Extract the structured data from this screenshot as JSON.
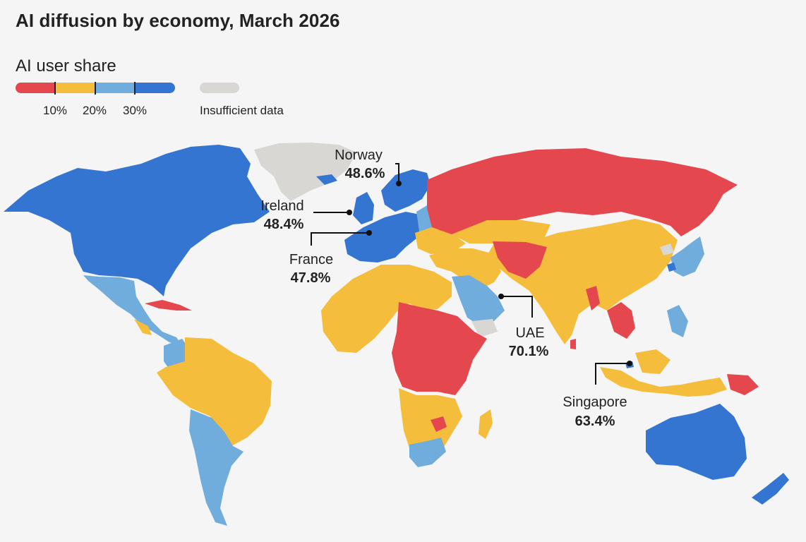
{
  "title": "AI diffusion by economy, March 2026",
  "legend": {
    "title": "AI user share",
    "colors": [
      "#e5474f",
      "#f4bd3b",
      "#70acdc",
      "#3375d1"
    ],
    "ticks": [
      "10%",
      "20%",
      "30%"
    ],
    "insufficient_label": "Insufficient data",
    "insufficient_color": "#d9d7d3"
  },
  "callouts": {
    "norway": {
      "name": "Norway",
      "value": "48.6%"
    },
    "ireland": {
      "name": "Ireland",
      "value": "48.4%"
    },
    "france": {
      "name": "France",
      "value": "47.8%"
    },
    "uae": {
      "name": "UAE",
      "value": "70.1%"
    },
    "singapore": {
      "name": "Singapore",
      "value": "63.4%"
    }
  }
}
